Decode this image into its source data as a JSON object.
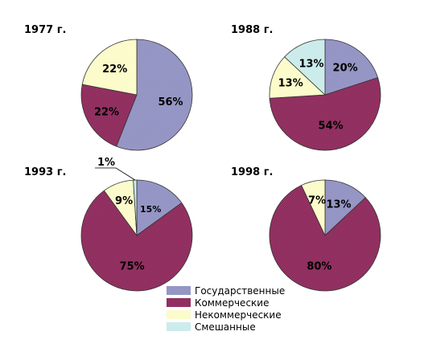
{
  "colors": {
    "state": "#9898c8",
    "commercial": "#993366",
    "noncommercial": "#fbfbcb",
    "mixed": "#ccecec",
    "outline": "#333333"
  },
  "legend": [
    {
      "key": "state",
      "label": "Государственные"
    },
    {
      "key": "commercial",
      "label": "Коммерческие"
    },
    {
      "key": "noncommercial",
      "label": "Некоммерческие"
    },
    {
      "key": "mixed",
      "label": "Смешанные"
    }
  ],
  "chart_data": [
    {
      "type": "pie",
      "title": "1977 г.",
      "slices": [
        {
          "key": "state",
          "value": 56,
          "label": "56%"
        },
        {
          "key": "commercial",
          "value": 22,
          "label": "22%"
        },
        {
          "key": "noncommercial",
          "value": 22,
          "label": "22%"
        }
      ]
    },
    {
      "type": "pie",
      "title": "1988 г.",
      "slices": [
        {
          "key": "state",
          "value": 20,
          "label": "20%"
        },
        {
          "key": "commercial",
          "value": 54,
          "label": "54%"
        },
        {
          "key": "noncommercial",
          "value": 13,
          "label": "13%"
        },
        {
          "key": "mixed",
          "value": 13,
          "label": "13%"
        }
      ]
    },
    {
      "type": "pie",
      "title": "1993 г.",
      "slices": [
        {
          "key": "state",
          "value": 15,
          "label": "15%"
        },
        {
          "key": "commercial",
          "value": 75,
          "label": "75%"
        },
        {
          "key": "noncommercial",
          "value": 9,
          "label": "9%"
        },
        {
          "key": "mixed",
          "value": 1,
          "label": "1%"
        }
      ]
    },
    {
      "type": "pie",
      "title": "1998 г.",
      "slices": [
        {
          "key": "state",
          "value": 13,
          "label": "13%"
        },
        {
          "key": "commercial",
          "value": 80,
          "label": "80%"
        },
        {
          "key": "noncommercial",
          "value": 7,
          "label": "7%"
        }
      ]
    }
  ]
}
